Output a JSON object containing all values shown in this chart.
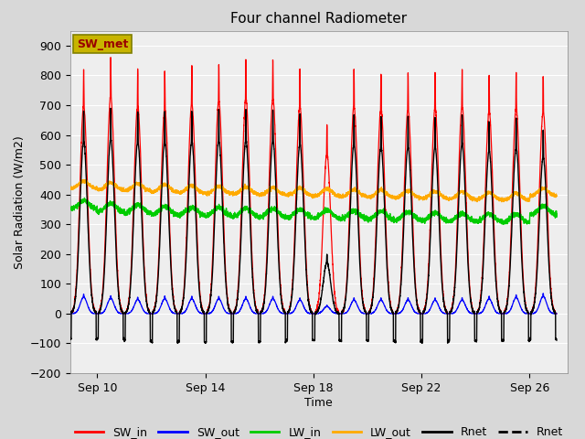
{
  "title": "Four channel Radiometer",
  "xlabel": "Time",
  "ylabel": "Solar Radiation (W/m2)",
  "ylim": [
    -200,
    950
  ],
  "yticks": [
    -200,
    -100,
    0,
    100,
    200,
    300,
    400,
    500,
    600,
    700,
    800,
    900
  ],
  "xlim": [
    9.0,
    27.4
  ],
  "xtick_days": [
    10,
    14,
    18,
    22,
    26
  ],
  "xtick_labels": [
    "Sep 10",
    "Sep 14",
    "Sep 18",
    "Sep 22",
    "Sep 26"
  ],
  "annotation_label": "SW_met",
  "annotation_bg": "#c8b400",
  "annotation_text_color": "#990000",
  "annotation_border_color": "#808000",
  "bg_color": "#d8d8d8",
  "plot_bg_color": "#eeeeee",
  "n_days": 18,
  "day_peak_SW_in": [
    820,
    860,
    820,
    810,
    830,
    840,
    850,
    850,
    820,
    630,
    820,
    810,
    810,
    810,
    820,
    800,
    810,
    800
  ],
  "day_peak_SW_out": [
    65,
    60,
    55,
    58,
    58,
    58,
    58,
    58,
    53,
    28,
    53,
    53,
    53,
    53,
    53,
    58,
    63,
    68
  ],
  "day_peak_net": [
    680,
    690,
    680,
    680,
    680,
    685,
    685,
    685,
    670,
    200,
    670,
    660,
    660,
    660,
    670,
    645,
    655,
    620
  ],
  "day_night_net": [
    -85,
    -85,
    -90,
    -95,
    -95,
    -95,
    -95,
    -95,
    -90,
    -90,
    -90,
    -90,
    -95,
    -95,
    -90,
    -90,
    -90,
    -85
  ],
  "lw_in_base": [
    350,
    340,
    335,
    330,
    328,
    326,
    324,
    322,
    320,
    318,
    316,
    314,
    312,
    310,
    308,
    306,
    304,
    330
  ],
  "lw_out_base": [
    420,
    415,
    412,
    408,
    405,
    402,
    400,
    398,
    396,
    394,
    392,
    390,
    388,
    386,
    384,
    382,
    380,
    395
  ]
}
